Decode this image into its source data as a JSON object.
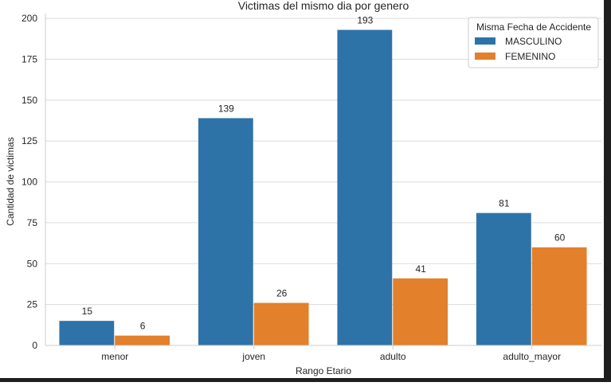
{
  "colors": {
    "background": "#ffffff",
    "grid": "#dcdcdc",
    "axis_frame": "#cccccc",
    "text": "#262626",
    "masculino": "#2e73a8",
    "femenino": "#e2802b",
    "frame_edge": "#1f1f1f"
  },
  "chart_data": {
    "type": "bar",
    "title": "Victimas del mismo dia por genero",
    "xlabel": "Rango Etario",
    "ylabel": "Cantidad de victimas",
    "categories": [
      "menor",
      "joven",
      "adulto",
      "adulto_mayor"
    ],
    "series": [
      {
        "name": "MASCULINO",
        "values": [
          15,
          139,
          193,
          81
        ]
      },
      {
        "name": "FEMENINO",
        "values": [
          6,
          26,
          41,
          60
        ]
      }
    ],
    "ylim": [
      0,
      203
    ],
    "yticks": [
      0,
      25,
      50,
      75,
      100,
      125,
      150,
      175,
      200
    ],
    "grid": "horizontal",
    "legend": {
      "title": "Misma Fecha de Accidente",
      "placement": "top-right"
    }
  }
}
